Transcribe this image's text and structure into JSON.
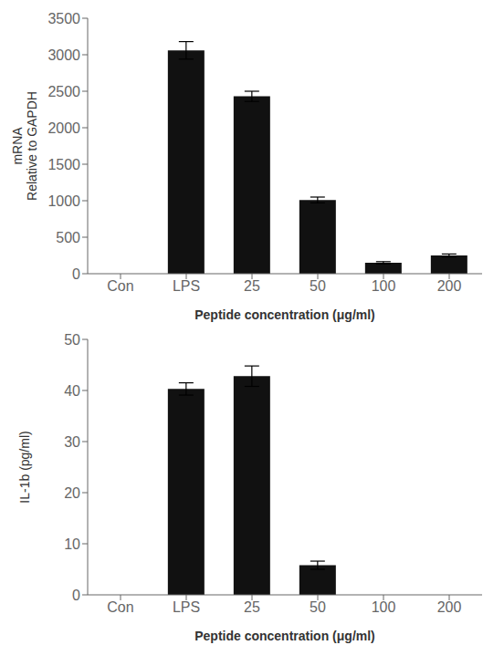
{
  "chart_data": [
    {
      "type": "bar",
      "categories": [
        "Con",
        "LPS",
        "25",
        "50",
        "100",
        "200"
      ],
      "values": [
        0,
        3060,
        2430,
        1010,
        150,
        250
      ],
      "errors": [
        0,
        120,
        70,
        40,
        15,
        20
      ],
      "ylabel": "mRNA\nRelative to GAPDH",
      "xlabel": "Peptide concentration (μg/ml)",
      "ylim": [
        0,
        3500
      ],
      "yticks": [
        0,
        500,
        1000,
        1500,
        2000,
        2500,
        3000,
        3500
      ],
      "color": "#111111",
      "grid": false
    },
    {
      "type": "bar",
      "categories": [
        "Con",
        "LPS",
        "25",
        "50",
        "100",
        "200"
      ],
      "values": [
        0,
        40.3,
        42.8,
        5.8,
        0,
        0
      ],
      "errors": [
        0,
        1.2,
        2.0,
        0.8,
        0,
        0
      ],
      "ylabel": "IL-1b (pg/ml)",
      "xlabel": "Peptide concentration (μg/ml)",
      "ylim": [
        0,
        50
      ],
      "yticks": [
        0,
        10,
        20,
        30,
        40,
        50
      ],
      "color": "#111111",
      "grid": false
    }
  ]
}
